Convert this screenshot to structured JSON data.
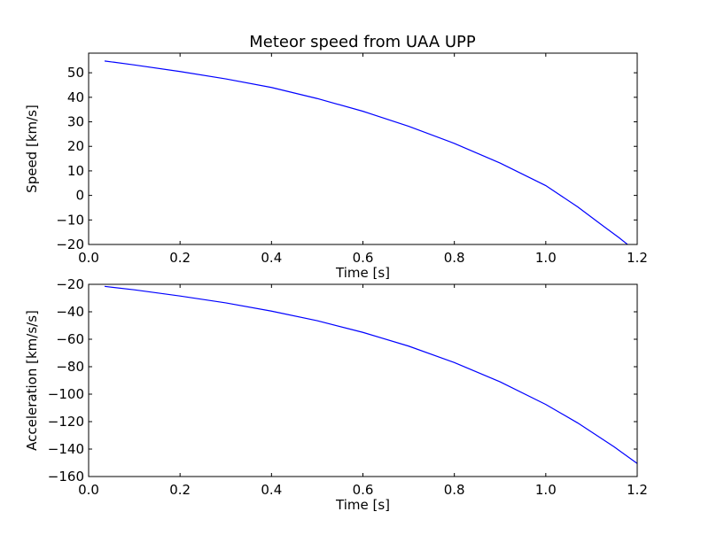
{
  "figure": {
    "title": "Meteor speed from  UAA UPP"
  },
  "chart_data": [
    {
      "type": "line",
      "title": "Meteor speed from  UAA UPP",
      "xlabel": "Time [s]",
      "ylabel": "Speed [km/s]",
      "xlim": [
        0.0,
        1.2
      ],
      "ylim": [
        -20,
        58
      ],
      "xticks": [
        0.0,
        0.2,
        0.4,
        0.6,
        0.8,
        1.0,
        1.2
      ],
      "xtick_labels": [
        "0.0",
        "0.2",
        "0.4",
        "0.6",
        "0.8",
        "1.0",
        "1.2"
      ],
      "yticks": [
        -20,
        -10,
        0,
        10,
        20,
        30,
        40,
        50
      ],
      "ytick_labels": [
        "−20",
        "−10",
        "0",
        "10",
        "20",
        "30",
        "40",
        "50"
      ],
      "grid": false,
      "color": "#0000ff",
      "series": [
        {
          "x": [
            0.035,
            0.1,
            0.2,
            0.3,
            0.4,
            0.5,
            0.6,
            0.7,
            0.8,
            0.9,
            1.0,
            1.07,
            1.12,
            1.16,
            1.185
          ],
          "y": [
            54.8,
            53.2,
            50.5,
            47.5,
            44.0,
            39.5,
            34.3,
            28.2,
            21.2,
            13.2,
            4.0,
            -4.7,
            -11.7,
            -17.2,
            -20.9
          ]
        }
      ]
    },
    {
      "type": "line",
      "xlabel": "Time [s]",
      "ylabel": "Acceleration [km/s/s]",
      "xlim": [
        0.0,
        1.2
      ],
      "ylim": [
        -160,
        -20
      ],
      "xticks": [
        0.0,
        0.2,
        0.4,
        0.6,
        0.8,
        1.0,
        1.2
      ],
      "xtick_labels": [
        "0.0",
        "0.2",
        "0.4",
        "0.6",
        "0.8",
        "1.0",
        "1.2"
      ],
      "yticks": [
        -160,
        -140,
        -120,
        -100,
        -80,
        -60,
        -40,
        -20
      ],
      "ytick_labels": [
        "−160",
        "−140",
        "−120",
        "−100",
        "−80",
        "−60",
        "−40",
        "−20"
      ],
      "grid": false,
      "color": "#0000ff",
      "series": [
        {
          "x": [
            0.035,
            0.1,
            0.2,
            0.3,
            0.4,
            0.5,
            0.6,
            0.7,
            0.8,
            0.9,
            1.0,
            1.07,
            1.15,
            1.2
          ],
          "y": [
            -21.5,
            -24.0,
            -28.5,
            -33.5,
            -39.5,
            -46.5,
            -55.0,
            -65.0,
            -77.0,
            -91.0,
            -107.5,
            -121.0,
            -138.5,
            -150.5
          ]
        }
      ]
    }
  ]
}
